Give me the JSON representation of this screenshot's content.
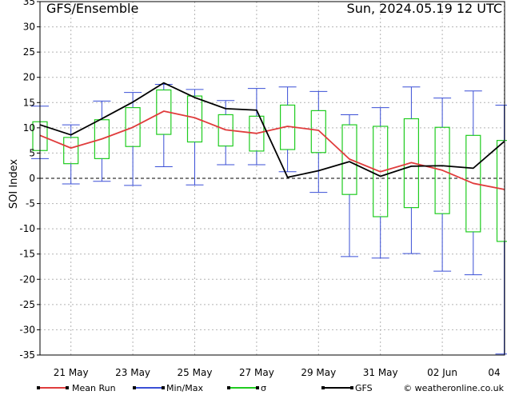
{
  "header": {
    "title": "GFS/Ensemble",
    "run": "Sun, 2024.05.19   12 UTC"
  },
  "colors": {
    "mean": "#e03c3c",
    "minmax": "#3a4fd6",
    "sigma": "#1fcc1f",
    "gfs": "#000000",
    "grid": "#b4b4b4"
  },
  "chart_data": {
    "type": "box",
    "ylabel": "SOI Index",
    "ylim": [
      -35,
      35
    ],
    "yticks": [
      -35,
      -30,
      -25,
      -20,
      -15,
      -10,
      -5,
      0,
      5,
      10,
      15,
      20,
      25,
      30,
      35
    ],
    "xtick_labels": [
      "21 May",
      "23 May",
      "25 May",
      "27 May",
      "29 May",
      "31 May",
      "02 Jun",
      "04"
    ],
    "x_start": "2024-05-20 00 UTC",
    "x_step": "1 day",
    "series": [
      {
        "name": "Mean Run",
        "values": [
          8.5,
          6.0,
          7.8,
          10.1,
          13.3,
          12.0,
          9.6,
          8.9,
          10.3,
          9.5,
          3.8,
          1.3,
          3.1,
          1.6,
          -1.0,
          -2.2
        ]
      },
      {
        "name": "GFS",
        "values": [
          10.6,
          8.6,
          11.8,
          15.1,
          18.9,
          16.0,
          13.8,
          13.5,
          0.2,
          1.5,
          3.3,
          0.4,
          2.4,
          2.5,
          2.0,
          7.3
        ]
      }
    ],
    "min": [
      3.9,
      -1.1,
      -0.6,
      -1.4,
      2.3,
      -1.3,
      2.7,
      2.7,
      1.3,
      -2.8,
      -15.5,
      -15.8,
      -14.9,
      -18.4,
      -19.1,
      -34.8
    ],
    "max": [
      14.3,
      10.6,
      15.3,
      17.0,
      18.6,
      17.6,
      15.4,
      17.8,
      18.1,
      17.2,
      12.6,
      14.0,
      18.1,
      15.9,
      17.3,
      14.5
    ],
    "sigma_low": [
      5.5,
      2.9,
      3.9,
      6.3,
      8.7,
      7.2,
      6.4,
      5.4,
      5.7,
      5.1,
      -3.2,
      -7.6,
      -5.8,
      -7.0,
      -10.6,
      -12.5
    ],
    "sigma_high": [
      11.2,
      8.1,
      11.6,
      14.0,
      17.5,
      16.3,
      12.6,
      12.3,
      14.5,
      13.4,
      10.6,
      10.3,
      11.8,
      10.1,
      8.5,
      7.5
    ],
    "legend": [
      "Mean Run",
      "Min/Max",
      "σ",
      "GFS"
    ],
    "legend_position": "bottom",
    "credit": "© weatheronline.co.uk",
    "grid": true
  }
}
